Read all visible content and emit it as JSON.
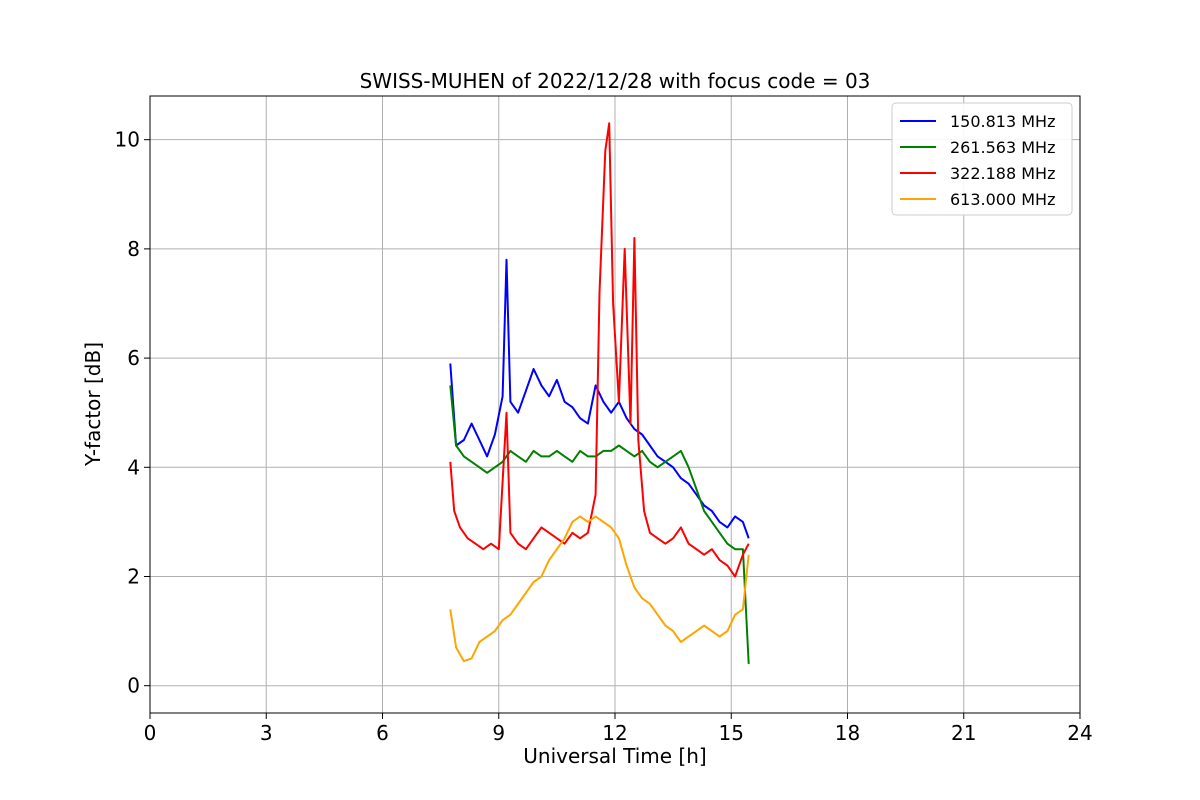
{
  "chart_data": {
    "type": "line",
    "title": "SWISS-MUHEN of 2022/12/28 with focus code = 03",
    "xlabel": "Universal Time [h]",
    "ylabel": "Y-factor [dB]",
    "xlim": [
      0,
      24
    ],
    "ylim": [
      -0.5,
      10.8
    ],
    "xticks": [
      0,
      3,
      6,
      9,
      12,
      15,
      18,
      21,
      24
    ],
    "yticks": [
      0,
      2,
      4,
      6,
      8,
      10
    ],
    "xtick_labels": [
      "0",
      "3",
      "6",
      "9",
      "12",
      "15",
      "18",
      "21",
      "24"
    ],
    "ytick_labels": [
      "0",
      "2",
      "4",
      "6",
      "8",
      "10"
    ],
    "grid": true,
    "legend_position": "top-right",
    "series": [
      {
        "name": "150.813 MHz",
        "color": "#0000ff",
        "x": [
          7.75,
          7.9,
          8.1,
          8.3,
          8.5,
          8.7,
          8.9,
          9.1,
          9.2,
          9.3,
          9.5,
          9.7,
          9.9,
          10.1,
          10.3,
          10.5,
          10.7,
          10.9,
          11.1,
          11.3,
          11.5,
          11.7,
          11.9,
          12.1,
          12.3,
          12.5,
          12.7,
          12.9,
          13.1,
          13.3,
          13.5,
          13.7,
          13.9,
          14.1,
          14.3,
          14.5,
          14.7,
          14.9,
          15.1,
          15.3,
          15.45
        ],
        "y": [
          5.9,
          4.4,
          4.5,
          4.8,
          4.5,
          4.2,
          4.6,
          5.3,
          7.8,
          5.2,
          5.0,
          5.4,
          5.8,
          5.5,
          5.3,
          5.6,
          5.2,
          5.1,
          4.9,
          4.8,
          5.5,
          5.2,
          5.0,
          5.2,
          4.9,
          4.7,
          4.6,
          4.4,
          4.2,
          4.1,
          4.0,
          3.8,
          3.7,
          3.5,
          3.3,
          3.2,
          3.0,
          2.9,
          3.1,
          3.0,
          2.7
        ]
      },
      {
        "name": "261.563 MHz",
        "color": "#008000",
        "x": [
          7.75,
          7.9,
          8.1,
          8.3,
          8.5,
          8.7,
          8.9,
          9.1,
          9.3,
          9.5,
          9.7,
          9.9,
          10.1,
          10.3,
          10.5,
          10.7,
          10.9,
          11.1,
          11.3,
          11.5,
          11.7,
          11.9,
          12.1,
          12.3,
          12.5,
          12.7,
          12.9,
          13.1,
          13.3,
          13.5,
          13.7,
          13.9,
          14.1,
          14.3,
          14.5,
          14.7,
          14.9,
          15.1,
          15.3,
          15.45
        ],
        "y": [
          5.5,
          4.4,
          4.2,
          4.1,
          4.0,
          3.9,
          4.0,
          4.1,
          4.3,
          4.2,
          4.1,
          4.3,
          4.2,
          4.2,
          4.3,
          4.2,
          4.1,
          4.3,
          4.2,
          4.2,
          4.3,
          4.3,
          4.4,
          4.3,
          4.2,
          4.3,
          4.1,
          4.0,
          4.1,
          4.2,
          4.3,
          4.0,
          3.6,
          3.2,
          3.0,
          2.8,
          2.6,
          2.5,
          2.5,
          0.4
        ]
      },
      {
        "name": "322.188 MHz",
        "color": "#ff0000",
        "x": [
          7.75,
          7.85,
          8.0,
          8.2,
          8.4,
          8.6,
          8.8,
          9.0,
          9.2,
          9.3,
          9.5,
          9.7,
          9.9,
          10.1,
          10.3,
          10.5,
          10.7,
          10.9,
          11.1,
          11.3,
          11.5,
          11.6,
          11.75,
          11.85,
          11.95,
          12.1,
          12.25,
          12.4,
          12.5,
          12.6,
          12.75,
          12.9,
          13.1,
          13.3,
          13.5,
          13.7,
          13.9,
          14.1,
          14.3,
          14.5,
          14.7,
          14.9,
          15.1,
          15.3,
          15.45
        ],
        "y": [
          4.1,
          3.2,
          2.9,
          2.7,
          2.6,
          2.5,
          2.6,
          2.5,
          5.0,
          2.8,
          2.6,
          2.5,
          2.7,
          2.9,
          2.8,
          2.7,
          2.6,
          2.8,
          2.7,
          2.8,
          3.5,
          7.2,
          9.8,
          10.3,
          7.0,
          5.2,
          8.0,
          4.8,
          8.2,
          4.5,
          3.2,
          2.8,
          2.7,
          2.6,
          2.7,
          2.9,
          2.6,
          2.5,
          2.4,
          2.5,
          2.3,
          2.2,
          2.0,
          2.4,
          2.6
        ]
      },
      {
        "name": "613.000 MHz",
        "color": "#ffa500",
        "x": [
          7.75,
          7.9,
          8.1,
          8.3,
          8.5,
          8.7,
          8.9,
          9.1,
          9.3,
          9.5,
          9.7,
          9.9,
          10.1,
          10.3,
          10.5,
          10.7,
          10.9,
          11.1,
          11.3,
          11.5,
          11.7,
          11.9,
          12.1,
          12.3,
          12.5,
          12.7,
          12.9,
          13.1,
          13.3,
          13.5,
          13.7,
          13.9,
          14.1,
          14.3,
          14.5,
          14.7,
          14.9,
          15.1,
          15.3,
          15.45
        ],
        "y": [
          1.4,
          0.7,
          0.45,
          0.5,
          0.8,
          0.9,
          1.0,
          1.2,
          1.3,
          1.5,
          1.7,
          1.9,
          2.0,
          2.3,
          2.5,
          2.7,
          3.0,
          3.1,
          3.0,
          3.1,
          3.0,
          2.9,
          2.7,
          2.2,
          1.8,
          1.6,
          1.5,
          1.3,
          1.1,
          1.0,
          0.8,
          0.9,
          1.0,
          1.1,
          1.0,
          0.9,
          1.0,
          1.3,
          1.4,
          2.4
        ]
      }
    ]
  }
}
